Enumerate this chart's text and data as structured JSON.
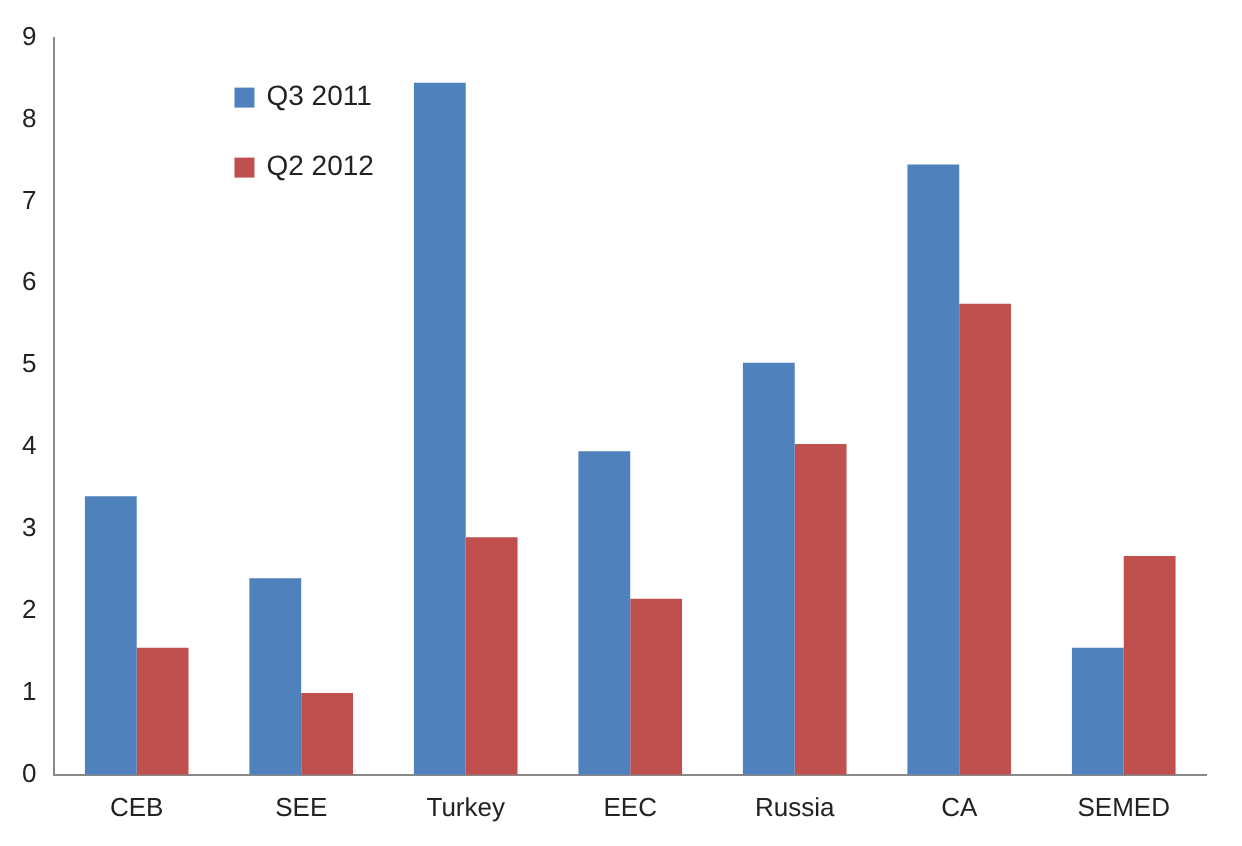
{
  "chart_data": {
    "type": "bar",
    "categories": [
      "CEB",
      "SEE",
      "Turkey",
      "EEC",
      "Russia",
      "CA",
      "SEMED"
    ],
    "series": [
      {
        "name": "Q3 2011",
        "color": "#4f81bd",
        "values": [
          3.4,
          2.4,
          8.45,
          3.95,
          5.03,
          7.45,
          1.55
        ]
      },
      {
        "name": "Q2 2012",
        "color": "#c0504d",
        "values": [
          1.55,
          1.0,
          2.9,
          2.15,
          4.04,
          5.75,
          2.67
        ]
      }
    ],
    "ylim": [
      0,
      9
    ],
    "yticks": [
      0,
      1,
      2,
      3,
      4,
      5,
      6,
      7,
      8,
      9
    ],
    "grid": false,
    "legend": "top left"
  }
}
